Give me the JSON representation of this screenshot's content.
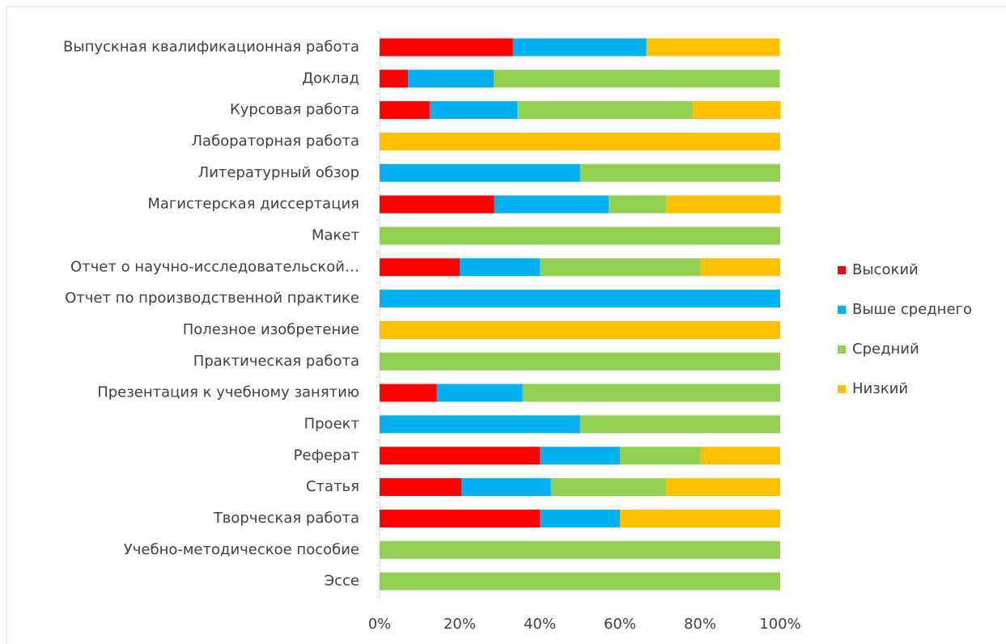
{
  "chart_data": {
    "type": "stacked_barh",
    "categories": [
      "Выпускная квалификационная работа",
      "Доклад",
      "Курсовая работа",
      "Лабораторная работа",
      "Литературный обзор",
      "Магистерская диссертация",
      "Макет",
      "Отчет о научно-исследовательской…",
      "Отчет по производственной практике",
      "Полезное изобретение",
      "Практическая работа",
      "Презентация к учебному занятию",
      "Проект",
      "Реферат",
      "Статья",
      "Творческая работа",
      "Учебно-методическое пособие",
      "Эссе"
    ],
    "series": [
      {
        "name": "Высокий",
        "color": "#ff0000",
        "values": [
          33.3,
          7.1,
          12.5,
          0,
          0,
          28.6,
          0,
          20,
          0,
          0,
          0,
          14.3,
          0,
          40,
          20.4,
          40,
          0,
          0
        ]
      },
      {
        "name": "Выше среднего",
        "color": "#00b0f0",
        "values": [
          33.3,
          21.4,
          21.9,
          0,
          50,
          28.6,
          0,
          20,
          100,
          0,
          0,
          21.4,
          50,
          20,
          22.4,
          20,
          0,
          0
        ]
      },
      {
        "name": "Средний",
        "color": "#92d050",
        "values": [
          0,
          71.4,
          43.8,
          0,
          50,
          14.3,
          100,
          40,
          0,
          0,
          100,
          64.3,
          50,
          20,
          28.6,
          0,
          100,
          100
        ]
      },
      {
        "name": "Низкий",
        "color": "#ffc000",
        "values": [
          33.3,
          0,
          21.9,
          100,
          0,
          28.6,
          0,
          20,
          0,
          100,
          0,
          0,
          0,
          20,
          28.6,
          40,
          0,
          0
        ]
      }
    ],
    "xlim": [
      0,
      100
    ],
    "xticks": [
      {
        "value": 0,
        "label": "0%"
      },
      {
        "value": 20,
        "label": "20%"
      },
      {
        "value": 40,
        "label": "40%"
      },
      {
        "value": 60,
        "label": "60%"
      },
      {
        "value": 80,
        "label": "80%"
      },
      {
        "value": 100,
        "label": "100%"
      }
    ],
    "legend": "right"
  }
}
